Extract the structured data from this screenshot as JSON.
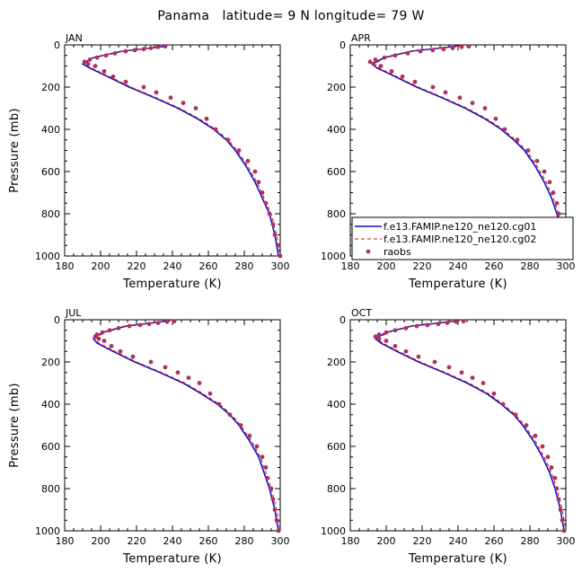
{
  "title": "Panama   latitude= 9 N longitude= 79 W",
  "chart_data": [
    {
      "type": "line",
      "panel": "JAN",
      "xlabel": "Temperature (K)",
      "ylabel": "Pressure (mb)",
      "xlim": [
        180,
        300
      ],
      "ylim": [
        1000,
        0
      ],
      "xticks": [
        180,
        200,
        220,
        240,
        260,
        280,
        300
      ],
      "yticks": [
        0,
        200,
        400,
        600,
        800,
        1000
      ],
      "grid": false,
      "series": [
        {
          "name": "f.e13.FAMIP.ne120_ne120.cg01",
          "style": "solid",
          "color": "#1010c8",
          "x": [
            237,
            228,
            212,
            196,
            190,
            194,
            204,
            216,
            230,
            243,
            254,
            263,
            270,
            275,
            281,
            286,
            290,
            294,
            297,
            299
          ],
          "y": [
            5,
            15,
            30,
            60,
            90,
            110,
            150,
            200,
            250,
            300,
            350,
            400,
            450,
            500,
            575,
            650,
            725,
            800,
            900,
            1000
          ]
        },
        {
          "name": "f.e13.FAMIP.ne120_ne120.cg02",
          "style": "dashed",
          "color": "#d21c1c",
          "x": [
            237,
            228,
            212,
            196,
            191,
            195,
            205,
            217,
            231,
            244,
            255,
            264,
            271,
            276,
            282,
            287,
            291,
            295,
            298,
            300
          ],
          "y": [
            5,
            15,
            30,
            60,
            90,
            110,
            150,
            200,
            250,
            300,
            350,
            400,
            450,
            500,
            575,
            650,
            725,
            800,
            900,
            1000
          ]
        },
        {
          "name": "raobs",
          "style": "markers",
          "color": "#b03060",
          "x": [
            236,
            232,
            228,
            224,
            219,
            214,
            208,
            203,
            198,
            194,
            191,
            193,
            197,
            202,
            207,
            214,
            224,
            231,
            239,
            246,
            253,
            259,
            264,
            271,
            277,
            282,
            286,
            288,
            290,
            292,
            294,
            296,
            297,
            299,
            300
          ],
          "y": [
            7,
            10,
            15,
            20,
            25,
            30,
            40,
            50,
            60,
            70,
            80,
            90,
            100,
            125,
            150,
            175,
            200,
            225,
            250,
            275,
            300,
            350,
            400,
            450,
            500,
            550,
            600,
            650,
            700,
            750,
            800,
            850,
            900,
            950,
            1000
          ]
        }
      ]
    },
    {
      "type": "line",
      "panel": "APR",
      "xlabel": "Temperature (K)",
      "ylabel": "",
      "xlim": [
        180,
        300
      ],
      "ylim": [
        1000,
        0
      ],
      "xticks": [
        180,
        200,
        220,
        240,
        260,
        280,
        300
      ],
      "yticks": [
        0,
        200,
        400,
        600,
        800,
        1000
      ],
      "grid": false,
      "legend": {
        "position": "bottom-right"
      },
      "series": [
        {
          "name": "f.e13.FAMIP.ne120_ne120.cg01",
          "style": "solid",
          "color": "#1010c8",
          "x": [
            240,
            230,
            214,
            199,
            192,
            195,
            205,
            217,
            231,
            244,
            255,
            264,
            271,
            277,
            283,
            288,
            292,
            295,
            298,
            300
          ],
          "y": [
            5,
            15,
            30,
            60,
            90,
            110,
            150,
            200,
            250,
            300,
            350,
            400,
            450,
            500,
            575,
            650,
            725,
            800,
            900,
            1000
          ]
        },
        {
          "name": "f.e13.FAMIP.ne120_ne120.cg02",
          "style": "dashed",
          "color": "#d21c1c",
          "x": [
            241,
            231,
            215,
            200,
            193,
            196,
            206,
            218,
            232,
            245,
            256,
            265,
            272,
            278,
            284,
            289,
            293,
            296,
            299,
            300
          ],
          "y": [
            5,
            15,
            30,
            60,
            90,
            110,
            150,
            200,
            250,
            300,
            350,
            400,
            450,
            500,
            575,
            650,
            725,
            800,
            900,
            1000
          ]
        },
        {
          "name": "raobs",
          "style": "markers",
          "color": "#b03060",
          "x": [
            246,
            242,
            237,
            232,
            226,
            219,
            212,
            205,
            199,
            194,
            191,
            193,
            197,
            203,
            209,
            216,
            226,
            233,
            241,
            248,
            255,
            261,
            266,
            273,
            279,
            284,
            288,
            291,
            293,
            295,
            296,
            297,
            298,
            299,
            300
          ],
          "y": [
            7,
            10,
            15,
            20,
            25,
            30,
            40,
            50,
            60,
            70,
            80,
            90,
            100,
            125,
            150,
            175,
            200,
            225,
            250,
            275,
            300,
            350,
            400,
            450,
            500,
            550,
            600,
            650,
            700,
            750,
            800,
            850,
            900,
            950,
            1000
          ]
        }
      ]
    },
    {
      "type": "line",
      "panel": "JUL",
      "xlabel": "Temperature (K)",
      "ylabel": "Pressure (mb)",
      "xlim": [
        180,
        300
      ],
      "ylim": [
        1000,
        0
      ],
      "xticks": [
        180,
        200,
        220,
        240,
        260,
        280,
        300
      ],
      "yticks": [
        0,
        200,
        400,
        600,
        800,
        1000
      ],
      "grid": false,
      "series": [
        {
          "name": "f.e13.FAMIP.ne120_ne120.cg01",
          "style": "solid",
          "color": "#1010c8",
          "x": [
            238,
            229,
            214,
            201,
            196,
            198,
            207,
            219,
            233,
            246,
            256,
            265,
            272,
            277,
            283,
            288,
            291,
            294,
            297,
            299
          ],
          "y": [
            5,
            15,
            30,
            60,
            90,
            110,
            150,
            200,
            250,
            300,
            350,
            400,
            450,
            500,
            575,
            650,
            725,
            800,
            900,
            1000
          ]
        },
        {
          "name": "f.e13.FAMIP.ne120_ne120.cg02",
          "style": "dashed",
          "color": "#d21c1c",
          "x": [
            239,
            230,
            215,
            202,
            197,
            199,
            208,
            220,
            234,
            247,
            257,
            266,
            273,
            278,
            284,
            289,
            292,
            295,
            298,
            300
          ],
          "y": [
            5,
            15,
            30,
            60,
            90,
            110,
            150,
            200,
            250,
            300,
            350,
            400,
            450,
            500,
            575,
            650,
            725,
            800,
            900,
            1000
          ]
        },
        {
          "name": "raobs",
          "style": "markers",
          "color": "#b03060",
          "x": [
            241,
            237,
            232,
            227,
            222,
            216,
            210,
            205,
            201,
            198,
            197,
            199,
            202,
            206,
            211,
            218,
            228,
            236,
            243,
            249,
            255,
            261,
            266,
            272,
            278,
            283,
            287,
            290,
            292,
            293,
            295,
            296,
            297,
            298,
            299
          ],
          "y": [
            7,
            10,
            15,
            20,
            25,
            30,
            40,
            50,
            60,
            70,
            80,
            90,
            100,
            125,
            150,
            175,
            200,
            225,
            250,
            275,
            300,
            350,
            400,
            450,
            500,
            550,
            600,
            650,
            700,
            750,
            800,
            850,
            900,
            950,
            1000
          ]
        }
      ]
    },
    {
      "type": "line",
      "panel": "OCT",
      "xlabel": "Temperature (K)",
      "ylabel": "",
      "xlim": [
        180,
        300
      ],
      "ylim": [
        1000,
        0
      ],
      "xticks": [
        180,
        200,
        220,
        240,
        260,
        280,
        300
      ],
      "yticks": [
        0,
        200,
        400,
        600,
        800,
        1000
      ],
      "grid": false,
      "series": [
        {
          "name": "f.e13.FAMIP.ne120_ne120.cg01",
          "style": "solid",
          "color": "#1010c8",
          "x": [
            240,
            230,
            214,
            200,
            194,
            197,
            206,
            218,
            232,
            245,
            256,
            264,
            271,
            276,
            282,
            287,
            291,
            294,
            297,
            299
          ],
          "y": [
            5,
            15,
            30,
            60,
            90,
            110,
            150,
            200,
            250,
            300,
            350,
            400,
            450,
            500,
            575,
            650,
            725,
            800,
            900,
            1000
          ]
        },
        {
          "name": "f.e13.FAMIP.ne120_ne120.cg02",
          "style": "dashed",
          "color": "#d21c1c",
          "x": [
            241,
            231,
            215,
            201,
            195,
            198,
            207,
            219,
            233,
            246,
            257,
            265,
            272,
            277,
            283,
            288,
            292,
            295,
            298,
            300
          ],
          "y": [
            5,
            15,
            30,
            60,
            90,
            110,
            150,
            200,
            250,
            300,
            350,
            400,
            450,
            500,
            575,
            650,
            725,
            800,
            900,
            1000
          ]
        },
        {
          "name": "raobs",
          "style": "markers",
          "color": "#b03060",
          "x": [
            243,
            239,
            234,
            229,
            223,
            217,
            211,
            205,
            200,
            196,
            194,
            196,
            200,
            205,
            211,
            218,
            227,
            235,
            242,
            248,
            254,
            260,
            265,
            272,
            278,
            283,
            287,
            290,
            292,
            294,
            295,
            296,
            297,
            298,
            299
          ],
          "y": [
            7,
            10,
            15,
            20,
            25,
            30,
            40,
            50,
            60,
            70,
            80,
            90,
            100,
            125,
            150,
            175,
            200,
            225,
            250,
            275,
            300,
            350,
            400,
            450,
            500,
            550,
            600,
            650,
            700,
            750,
            800,
            850,
            900,
            950,
            1000
          ]
        }
      ]
    }
  ]
}
